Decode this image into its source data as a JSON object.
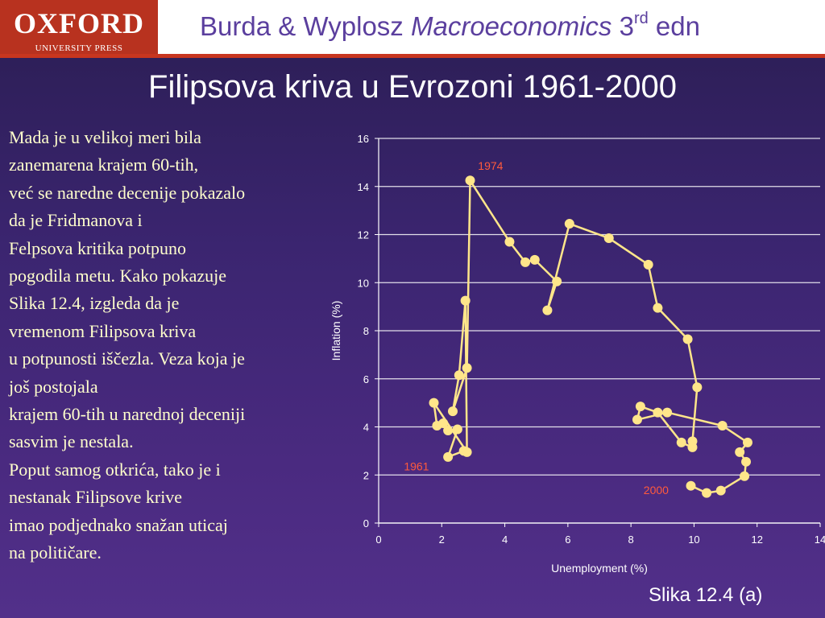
{
  "header": {
    "logo_main": "OXFORD",
    "logo_sub": "UNIVERSITY PRESS",
    "title_prefix": "Burda & Wyplosz ",
    "title_italic": "Macroeconomics",
    "title_num": " 3",
    "title_sup": "rd",
    "title_suffix": " edn"
  },
  "slide_title": "Filipsova kriva u Evrozoni 1961-2000",
  "body_lines": [
    "Mada je u velikoj meri bila",
    "zanemarena krajem 60-tih,",
    "već se naredne decenije pokazalo",
    "da je Fridmanova i",
    "Felpsova kritika potpuno",
    "pogodila metu. Kako pokazuje",
    "Slika 12.4, izgleda da je",
    "vremenom Filipsova kriva",
    "u potpunosti iščezla. Veza koja je",
    "još postojala",
    "krajem 60-tih u narednoj deceniji",
    "sasvim je nestala.",
    "Poput samog otkrića, tako je i",
    "nestanak Filipsove krive",
    "imao podjednako snažan uticaj",
    "na političare."
  ],
  "figure_label": "Slika 12.4 (a)",
  "colors": {
    "header_bg": "#ffffff",
    "logo_bg": "#b8321f",
    "rule": "#c8361f",
    "header_title": "#5b3f9e",
    "slide_bg": "#3b2570",
    "body_text": "#ffffcc",
    "series": "#ffe68a",
    "annotation": "#ff5a3c",
    "grid": "#ffffff"
  },
  "chart_data": {
    "type": "line",
    "xlabel": "Unemployment (%)",
    "ylabel": "Inflation (%)",
    "xlim": [
      0,
      14
    ],
    "ylim": [
      0,
      16
    ],
    "xticks": [
      0,
      2,
      4,
      6,
      8,
      10,
      12,
      14
    ],
    "yticks": [
      0,
      2,
      4,
      6,
      8,
      10,
      12,
      14,
      16
    ],
    "grid": "horizontal",
    "markers": true,
    "series": [
      {
        "x": [
          2.7,
          2.2,
          2.5,
          2.2,
          2.05,
          1.85,
          1.75,
          2.8,
          2.75,
          2.55,
          2.35,
          2.8,
          2.9,
          4.15,
          4.65,
          4.95,
          5.65,
          5.35,
          6.05,
          7.3,
          8.55,
          8.85,
          9.8,
          10.1,
          9.95,
          9.95,
          9.6,
          8.85,
          8.3,
          8.2,
          9.15,
          10.9,
          11.7,
          11.45,
          11.65,
          11.6,
          10.85,
          10.4,
          9.9
        ],
        "y": [
          3.0,
          2.75,
          3.9,
          3.85,
          4.15,
          4.05,
          5.0,
          2.95,
          9.25,
          6.15,
          4.65,
          6.45,
          14.25,
          11.7,
          10.85,
          10.95,
          10.05,
          8.85,
          12.45,
          11.85,
          10.75,
          8.95,
          7.65,
          5.65,
          3.4,
          3.15,
          3.35,
          4.6,
          4.85,
          4.3,
          4.6,
          4.05,
          3.35,
          2.95,
          2.55,
          1.95,
          1.35,
          1.25,
          1.55
        ]
      }
    ],
    "annotations": [
      {
        "text": "1974",
        "x": 3.15,
        "y": 14.7
      },
      {
        "text": "1961",
        "x": 0.8,
        "y": 2.2
      },
      {
        "text": "2000",
        "x": 8.4,
        "y": 1.2
      }
    ]
  }
}
